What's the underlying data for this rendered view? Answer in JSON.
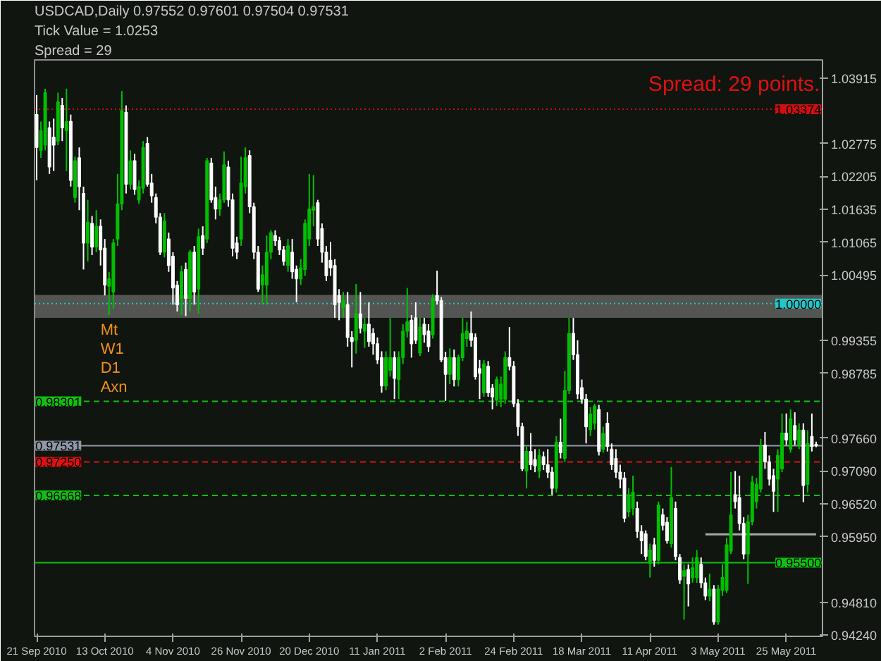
{
  "chart_data": {
    "type": "candlestick",
    "title": "USDCAD,Daily  0.97552 0.97601 0.97504 0.97531",
    "annotations": [
      "Tick Value = 1.0253",
      "Spread = 29",
      "Spread: 29 points.",
      "Mt",
      "W1",
      "D1",
      "Axn"
    ],
    "categories": [
      "21 Sep 2010",
      null,
      null,
      null,
      null,
      null,
      null,
      null,
      null,
      null,
      null,
      null,
      null,
      null,
      null,
      null,
      "13 Oct 2010",
      null,
      null,
      null,
      null,
      null,
      null,
      null,
      null,
      null,
      null,
      null,
      null,
      null,
      null,
      null,
      "4 Nov 2010",
      null,
      null,
      null,
      null,
      null,
      null,
      null,
      null,
      null,
      null,
      null,
      null,
      null,
      null,
      null,
      "26 Nov 2010",
      null,
      null,
      null,
      null,
      null,
      null,
      null,
      null,
      null,
      null,
      null,
      null,
      null,
      null,
      null,
      "20 Dec 2010",
      null,
      null,
      null,
      null,
      null,
      null,
      null,
      null,
      null,
      null,
      null,
      null,
      null,
      null,
      null,
      "11 Jan 2011",
      null,
      null,
      null,
      null,
      null,
      null,
      null,
      null,
      null,
      null,
      null,
      null,
      null,
      null,
      null,
      "2 Feb 2011",
      null,
      null,
      null,
      null,
      null,
      null,
      null,
      null,
      null,
      null,
      null,
      null,
      null,
      null,
      null,
      "24 Feb 2011",
      null,
      null,
      null,
      null,
      null,
      null,
      null,
      null,
      null,
      null,
      null,
      null,
      null,
      null,
      null,
      "18 Mar 2011",
      null,
      null,
      null,
      null,
      null,
      null,
      null,
      null,
      null,
      null,
      null,
      null,
      null,
      null,
      null,
      "11 Apr 2011",
      null,
      null,
      null,
      null,
      null,
      null,
      null,
      null,
      null,
      null,
      null,
      null,
      null,
      null,
      null,
      "3 May 2011",
      null,
      null,
      null,
      null,
      null,
      null,
      null,
      null,
      null,
      null,
      null,
      null,
      null,
      null,
      null,
      "25 May 2011",
      null,
      null,
      null,
      null,
      null,
      null,
      null
    ],
    "ohlc": [
      [
        1.0328,
        1.0362,
        1.0214,
        1.0271
      ],
      [
        1.0266,
        1.0316,
        1.0253,
        1.03
      ],
      [
        1.0275,
        1.0373,
        1.0266,
        1.0366
      ],
      [
        1.0305,
        1.0316,
        1.0225,
        1.0237
      ],
      [
        1.0289,
        1.0321,
        1.023,
        1.0275
      ],
      [
        1.0282,
        1.0366,
        1.0275,
        1.035
      ],
      [
        1.0344,
        1.0357,
        1.0282,
        1.0305
      ],
      [
        1.03,
        1.0373,
        1.023,
        1.0316
      ],
      [
        1.0316,
        1.0328,
        1.0203,
        1.0214
      ],
      [
        1.0184,
        1.0255,
        1.0175,
        1.0248
      ],
      [
        1.0253,
        1.0271,
        1.0162,
        1.0203
      ],
      [
        1.0191,
        1.0203,
        1.0059,
        1.0105
      ],
      [
        1.0105,
        1.018,
        1.0073,
        1.0141
      ],
      [
        1.0139,
        1.0152,
        1.0084,
        1.0098
      ],
      [
        1.0098,
        1.0162,
        1.0089,
        1.0134
      ],
      [
        1.0134,
        1.0146,
        1.0066,
        1.0093
      ],
      [
        1.0096,
        1.0112,
        1.0014,
        1.0032
      ],
      [
        1.003,
        1.0055,
        0.998,
        1.0043
      ],
      [
        1.002,
        1.0112,
        0.9991,
        1.0105
      ],
      [
        1.0112,
        1.0225,
        1.01,
        1.0173
      ],
      [
        1.0173,
        1.0369,
        1.0162,
        1.0335
      ],
      [
        1.0332,
        1.0344,
        1.0191,
        1.0207
      ],
      [
        1.0207,
        1.0266,
        1.0198,
        1.0248
      ],
      [
        1.0248,
        1.026,
        1.0189,
        1.0198
      ],
      [
        1.018,
        1.0214,
        1.0173,
        1.0203
      ],
      [
        1.02,
        1.0282,
        1.0191,
        1.0271
      ],
      [
        1.0278,
        1.0289,
        1.0203,
        1.0207
      ],
      [
        1.0209,
        1.0225,
        1.0175,
        1.0187
      ],
      [
        1.0184,
        1.0191,
        1.0139,
        1.015
      ],
      [
        1.015,
        1.0157,
        1.0084,
        1.0089
      ],
      [
        1.0089,
        1.0157,
        1.008,
        1.0143
      ],
      [
        1.0112,
        1.0123,
        1.0055,
        1.0066
      ],
      [
        1.0082,
        1.0089,
        0.9998,
        1.0027
      ],
      [
        1.0032,
        1.0039,
        0.9986,
        0.9998
      ],
      [
        1.0009,
        1.0066,
        0.998,
        1.0055
      ],
      [
        1.0059,
        1.0071,
        0.9978,
        1.0009
      ],
      [
        1.0009,
        1.0093,
        0.9986,
        1.0089
      ],
      [
        1.0089,
        1.01,
        0.9998,
        1.002
      ],
      [
        1.0025,
        1.013,
        0.9982,
        1.0116
      ],
      [
        1.0118,
        1.0134,
        1.0084,
        1.0096
      ],
      [
        1.0112,
        1.0253,
        1.0105,
        1.0248
      ],
      [
        1.0244,
        1.0253,
        1.0175,
        1.018
      ],
      [
        1.0184,
        1.0203,
        1.0146,
        1.0164
      ],
      [
        1.0164,
        1.0191,
        1.0152,
        1.018
      ],
      [
        1.018,
        1.0264,
        1.0175,
        1.0241
      ],
      [
        1.0237,
        1.0248,
        1.0168,
        1.018
      ],
      [
        1.018,
        1.0191,
        1.0082,
        1.0096
      ],
      [
        1.0105,
        1.0116,
        1.0077,
        1.0089
      ],
      [
        1.0112,
        1.0255,
        1.01,
        1.0209
      ],
      [
        1.0203,
        1.0271,
        1.0191,
        1.0253
      ],
      [
        1.0257,
        1.0266,
        1.0157,
        1.0168
      ],
      [
        1.0168,
        1.0175,
        1.0077,
        1.0089
      ],
      [
        1.0089,
        1.01,
        1.002,
        1.0025
      ],
      [
        1.0032,
        1.0066,
        0.9998,
        1.005
      ],
      [
        1.0032,
        1.0118,
        0.9998,
        1.0089
      ],
      [
        1.0089,
        1.0127,
        1.0077,
        1.0123
      ],
      [
        1.0118,
        1.0127,
        1.01,
        1.0109
      ],
      [
        1.0109,
        1.0116,
        1.0084,
        1.0093
      ],
      [
        1.0093,
        1.01,
        1.0066,
        1.0073
      ],
      [
        1.0066,
        1.0112,
        1.0055,
        1.01
      ],
      [
        1.0089,
        1.0112,
        1.0043,
        1.0055
      ],
      [
        1.0059,
        1.0066,
        1.0002,
        1.0043
      ],
      [
        1.0043,
        1.0077,
        1.0032,
        1.0062
      ],
      [
        1.0059,
        1.0146,
        1.0048,
        1.0139
      ],
      [
        1.0112,
        1.0225,
        1.01,
        1.0164
      ],
      [
        1.0162,
        1.0223,
        1.0134,
        1.0168
      ],
      [
        1.0175,
        1.018,
        1.01,
        1.0112
      ],
      [
        1.013,
        1.0139,
        1.0071,
        1.0089
      ],
      [
        1.0089,
        1.01,
        1.0039,
        1.0048
      ],
      [
        1.0075,
        1.0107,
        1.0048,
        1.0062
      ],
      [
        1.0066,
        1.0077,
        0.9975,
        0.9998
      ],
      [
        1.0014,
        1.0025,
        0.9971,
        1.0002
      ],
      [
        0.9993,
        1.002,
        0.9975,
        1.0005
      ],
      [
        0.9998,
        1.002,
        0.9925,
        0.9941
      ],
      [
        0.9941,
        0.9952,
        0.9889,
        0.9934
      ],
      [
        0.9936,
        1.0034,
        0.9913,
        0.9982
      ],
      [
        0.9982,
        1.002,
        0.9948,
        0.9957
      ],
      [
        0.9952,
        0.9975,
        0.9923,
        0.9964
      ],
      [
        0.9964,
        1.0002,
        0.9925,
        0.9934
      ],
      [
        0.9948,
        0.9957,
        0.9911,
        0.993
      ],
      [
        0.993,
        0.9941,
        0.9895,
        0.9902
      ],
      [
        0.9906,
        0.9917,
        0.9845,
        0.9857
      ],
      [
        0.9857,
        0.9917,
        0.9849,
        0.9906
      ],
      [
        0.9884,
        0.9975,
        0.9873,
        0.9906
      ],
      [
        0.9906,
        0.9917,
        0.9834,
        0.987
      ],
      [
        0.9868,
        0.9917,
        0.9834,
        0.9906
      ],
      [
        0.9906,
        0.9964,
        0.9895,
        0.9952
      ],
      [
        0.9952,
        1.0027,
        0.9941,
        0.9968
      ],
      [
        0.9971,
        0.998,
        0.9906,
        0.993
      ],
      [
        0.9975,
        1.0002,
        0.993,
        0.9936
      ],
      [
        0.9914,
        0.9975,
        0.9909,
        0.9959
      ],
      [
        0.9964,
        0.9975,
        0.9932,
        0.9946
      ],
      [
        0.9952,
        0.9964,
        0.9916,
        0.9925
      ],
      [
        0.9946,
        1.0016,
        0.9939,
        1.0009
      ],
      [
        1.0014,
        1.0057,
        0.9998,
        1.0005
      ],
      [
        1.0005,
        1.0011,
        0.9898,
        0.9902
      ],
      [
        0.9906,
        0.9916,
        0.9831,
        0.9877
      ],
      [
        0.9877,
        0.9922,
        0.986,
        0.9906
      ],
      [
        0.9906,
        0.992,
        0.9856,
        0.9868
      ],
      [
        0.9868,
        0.9911,
        0.9856,
        0.9906
      ],
      [
        0.9906,
        0.9975,
        0.99,
        0.9948
      ],
      [
        0.9939,
        0.9968,
        0.9925,
        0.9952
      ],
      [
        0.9948,
        0.9986,
        0.9925,
        0.9936
      ],
      [
        0.9941,
        0.9948,
        0.9868,
        0.9873
      ],
      [
        0.9887,
        0.9902,
        0.9834,
        0.9879
      ],
      [
        0.9845,
        0.9902,
        0.9838,
        0.9895
      ],
      [
        0.9891,
        0.99,
        0.9838,
        0.9845
      ],
      [
        0.9853,
        0.986,
        0.9816,
        0.9838
      ],
      [
        0.9832,
        0.9873,
        0.9822,
        0.9868
      ],
      [
        0.9834,
        0.9873,
        0.982,
        0.986
      ],
      [
        0.9834,
        0.9917,
        0.9826,
        0.9906
      ],
      [
        0.9906,
        0.9959,
        0.9884,
        0.9891
      ],
      [
        0.9891,
        0.99,
        0.982,
        0.9826
      ],
      [
        0.9826,
        0.9834,
        0.977,
        0.9786
      ],
      [
        0.9786,
        0.9793,
        0.9709,
        0.9713
      ],
      [
        0.9709,
        0.9752,
        0.9679,
        0.9743
      ],
      [
        0.9743,
        0.9775,
        0.9711,
        0.972
      ],
      [
        0.9729,
        0.9747,
        0.9707,
        0.9718
      ],
      [
        0.9709,
        0.9747,
        0.9697,
        0.9736
      ],
      [
        0.9734,
        0.9743,
        0.9711,
        0.972
      ],
      [
        0.972,
        0.9747,
        0.9697,
        0.9707
      ],
      [
        0.9707,
        0.9716,
        0.9668,
        0.9679
      ],
      [
        0.9679,
        0.977,
        0.9672,
        0.9759
      ],
      [
        0.9759,
        0.98,
        0.9731,
        0.9741
      ],
      [
        0.9731,
        0.9883,
        0.9725,
        0.9849
      ],
      [
        0.9849,
        0.9975,
        0.9843,
        0.9948
      ],
      [
        0.9948,
        0.9975,
        0.9902,
        0.9911
      ],
      [
        0.9911,
        0.9936,
        0.9834,
        0.9843
      ],
      [
        0.9854,
        0.9868,
        0.9826,
        0.9834
      ],
      [
        0.9834,
        0.9843,
        0.9757,
        0.9786
      ],
      [
        0.9781,
        0.982,
        0.977,
        0.9808
      ],
      [
        0.9792,
        0.9826,
        0.9781,
        0.9822
      ],
      [
        0.9816,
        0.9824,
        0.9736,
        0.9743
      ],
      [
        0.9747,
        0.9786,
        0.9741,
        0.9774
      ],
      [
        0.9792,
        0.9811,
        0.9743,
        0.9752
      ],
      [
        0.9747,
        0.9757,
        0.9711,
        0.972
      ],
      [
        0.9731,
        0.9747,
        0.9697,
        0.9707
      ],
      [
        0.9707,
        0.972,
        0.9679,
        0.9695
      ],
      [
        0.9697,
        0.9707,
        0.962,
        0.9627
      ],
      [
        0.9638,
        0.9679,
        0.9629,
        0.9668
      ],
      [
        0.9644,
        0.9701,
        0.9632,
        0.9672
      ],
      [
        0.9644,
        0.9656,
        0.9593,
        0.9604
      ],
      [
        0.9604,
        0.9615,
        0.9565,
        0.9588
      ],
      [
        0.96,
        0.9606,
        0.9554,
        0.9561
      ],
      [
        0.9549,
        0.9583,
        0.9524,
        0.9572
      ],
      [
        0.9581,
        0.9593,
        0.9543,
        0.9554
      ],
      [
        0.9554,
        0.9656,
        0.9547,
        0.965
      ],
      [
        0.9633,
        0.9644,
        0.9606,
        0.9615
      ],
      [
        0.962,
        0.9629,
        0.9583,
        0.9588
      ],
      [
        0.9583,
        0.9716,
        0.9576,
        0.9663
      ],
      [
        0.9644,
        0.9656,
        0.9554,
        0.9561
      ],
      [
        0.9559,
        0.9565,
        0.9513,
        0.952
      ],
      [
        0.9526,
        0.9547,
        0.9451,
        0.9536
      ],
      [
        0.9538,
        0.9547,
        0.9474,
        0.9513
      ],
      [
        0.9524,
        0.9559,
        0.9515,
        0.9541
      ],
      [
        0.9524,
        0.9572,
        0.9515,
        0.9559
      ],
      [
        0.9547,
        0.9559,
        0.9506,
        0.9515
      ],
      [
        0.9515,
        0.9524,
        0.9485,
        0.9492
      ],
      [
        0.9492,
        0.9531,
        0.9483,
        0.9504
      ],
      [
        0.9504,
        0.9511,
        0.9442,
        0.9447
      ],
      [
        0.9447,
        0.9511,
        0.9442,
        0.9504
      ],
      [
        0.9502,
        0.9547,
        0.9492,
        0.9524
      ],
      [
        0.9502,
        0.9593,
        0.9497,
        0.9581
      ],
      [
        0.957,
        0.9707,
        0.9565,
        0.9633
      ],
      [
        0.9668,
        0.9709,
        0.9644,
        0.9656
      ],
      [
        0.9663,
        0.9701,
        0.9606,
        0.9618
      ],
      [
        0.9618,
        0.9629,
        0.9556,
        0.9565
      ],
      [
        0.9565,
        0.9633,
        0.9513,
        0.9621
      ],
      [
        0.9621,
        0.9701,
        0.9615,
        0.969
      ],
      [
        0.9656,
        0.9697,
        0.9644,
        0.9686
      ],
      [
        0.9678,
        0.9765,
        0.9672,
        0.9752
      ],
      [
        0.9754,
        0.9777,
        0.9713,
        0.9725
      ],
      [
        0.9725,
        0.9736,
        0.9684,
        0.9695
      ],
      [
        0.9701,
        0.9713,
        0.9638,
        0.9674
      ],
      [
        0.9695,
        0.9747,
        0.9638,
        0.9736
      ],
      [
        0.9713,
        0.9809,
        0.9707,
        0.9775
      ],
      [
        0.9775,
        0.9809,
        0.9754,
        0.9763
      ],
      [
        0.9747,
        0.9816,
        0.9741,
        0.98
      ],
      [
        0.9788,
        0.9811,
        0.9754,
        0.9763
      ],
      [
        0.9754,
        0.9792,
        0.9747,
        0.978
      ],
      [
        0.978,
        0.9792,
        0.9655,
        0.9684
      ],
      [
        0.9686,
        0.978,
        0.9672,
        0.9757
      ],
      [
        0.9769,
        0.9809,
        0.9743,
        0.9752
      ],
      [
        0.97552,
        0.97601,
        0.97504,
        0.97531
      ]
    ],
    "colors": [
      "#ffffff",
      "#00c000",
      "#00c000",
      "#ffffff",
      "#ffffff",
      "#00c000",
      "#ffffff",
      "#00c000",
      "#ffffff",
      "#00c000",
      "#ffffff",
      "#ffffff",
      "#00c000",
      "#ffffff",
      "#00c000",
      "#ffffff",
      "#ffffff",
      "#00c000",
      "#00c000",
      "#00c000",
      "#00c000",
      "#ffffff",
      "#00c000",
      "#ffffff",
      "#00c000",
      "#00c000",
      "#ffffff",
      "#ffffff",
      "#ffffff",
      "#ffffff",
      "#00c000",
      "#ffffff",
      "#ffffff",
      "#ffffff",
      "#00c000",
      "#ffffff",
      "#00c000",
      "#ffffff",
      "#00c000",
      "#ffffff",
      "#00c000",
      "#ffffff",
      "#ffffff",
      "#00c000",
      "#00c000",
      "#ffffff",
      "#ffffff",
      "#ffffff",
      "#00c000",
      "#00c000",
      "#ffffff",
      "#ffffff",
      "#ffffff",
      "#00c000",
      "#00c000",
      "#00c000",
      "#ffffff",
      "#ffffff",
      "#ffffff",
      "#00c000",
      "#ffffff",
      "#ffffff",
      "#00c000",
      "#00c000",
      "#00c000",
      "#00c000",
      "#ffffff",
      "#ffffff",
      "#ffffff",
      "#ffffff",
      "#ffffff",
      "#ffffff",
      "#00c000",
      "#ffffff",
      "#ffffff",
      "#00c000",
      "#ffffff",
      "#00c000",
      "#ffffff",
      "#ffffff",
      "#ffffff",
      "#ffffff",
      "#00c000",
      "#00c000",
      "#ffffff",
      "#00c000",
      "#00c000",
      "#00c000",
      "#ffffff",
      "#ffffff",
      "#00c000",
      "#ffffff",
      "#ffffff",
      "#00c000",
      "#ffffff",
      "#ffffff",
      "#ffffff",
      "#00c000",
      "#ffffff",
      "#00c000",
      "#00c000",
      "#00c000",
      "#ffffff",
      "#ffffff",
      "#ffffff",
      "#00c000",
      "#ffffff",
      "#ffffff",
      "#00c000",
      "#00c000",
      "#00c000",
      "#ffffff",
      "#ffffff",
      "#ffffff",
      "#ffffff",
      "#00c000",
      "#ffffff",
      "#ffffff",
      "#00c000",
      "#ffffff",
      "#ffffff",
      "#ffffff",
      "#00c000",
      "#ffffff",
      "#00c000",
      "#00c000",
      "#ffffff",
      "#ffffff",
      "#ffffff",
      "#ffffff",
      "#00c000",
      "#00c000",
      "#ffffff",
      "#00c000",
      "#ffffff",
      "#ffffff",
      "#ffffff",
      "#ffffff",
      "#ffffff",
      "#00c000",
      "#00c000",
      "#ffffff",
      "#ffffff",
      "#ffffff",
      "#00c000",
      "#ffffff",
      "#00c000",
      "#ffffff",
      "#ffffff",
      "#00c000",
      "#ffffff",
      "#ffffff",
      "#00c000",
      "#ffffff",
      "#00c000",
      "#00c000",
      "#ffffff",
      "#ffffff",
      "#00c000",
      "#ffffff",
      "#00c000",
      "#00c000",
      "#00c000",
      "#00c000",
      "#ffffff",
      "#ffffff",
      "#ffffff",
      "#00c000",
      "#00c000",
      "#00c000",
      "#00c000",
      "#ffffff",
      "#ffffff",
      "#ffffff",
      "#00c000",
      "#00c000",
      "#ffffff",
      "#00c000",
      "#ffffff",
      "#00c000",
      "#ffffff",
      "#00c000",
      "#ffffff",
      "#ffffff"
    ],
    "series": [
      {
        "type": "line",
        "color": "#a8a8a8",
        "values": [
          null,
          null,
          null,
          null,
          null,
          null,
          null,
          null,
          null,
          null,
          null,
          null,
          null,
          null,
          null,
          null,
          null,
          null,
          null,
          null,
          null,
          null,
          null,
          null,
          null,
          null,
          null,
          null,
          null,
          null,
          null,
          null,
          null,
          null,
          null,
          null,
          null,
          null,
          null,
          null,
          null,
          null,
          null,
          null,
          null,
          null,
          null,
          null,
          null,
          null,
          null,
          null,
          null,
          null,
          null,
          null,
          null,
          null,
          null,
          null,
          null,
          null,
          null,
          null,
          null,
          null,
          null,
          null,
          null,
          null,
          null,
          null,
          null,
          null,
          null,
          null,
          null,
          null,
          null,
          null,
          null,
          null,
          null,
          null,
          null,
          null,
          null,
          null,
          null,
          null,
          null,
          null,
          null,
          null,
          null,
          null,
          null,
          null,
          null,
          null,
          null,
          null,
          null,
          null,
          null,
          null,
          null,
          null,
          null,
          null,
          null,
          null,
          null,
          null,
          null,
          null,
          null,
          null,
          null,
          null,
          null,
          null,
          null,
          null,
          null,
          null,
          null,
          null,
          null,
          null,
          null,
          null,
          null,
          null,
          null,
          null,
          null,
          null,
          null,
          null,
          null,
          null,
          null,
          null,
          null,
          null,
          null,
          null,
          null,
          null,
          null,
          null,
          null,
          null,
          null,
          null,
          null,
          0.9599,
          0.9599,
          0.9599,
          0.9599,
          0.9599,
          0.9599,
          0.9599,
          0.9599,
          0.9599,
          0.9599,
          0.9599,
          0.9599,
          0.9599,
          0.9599,
          0.9599,
          0.9599,
          0.9599,
          0.9599,
          0.9599,
          0.9599,
          0.9599,
          0.9599,
          0.9599,
          0.9599,
          0.9599,
          0.9599,
          0.9599
        ]
      }
    ],
    "ylim": [
      0.9422,
      1.0423
    ],
    "yticks": [
      {
        "value": 1.03915,
        "label": "1.03915"
      },
      {
        "value": 1.02775,
        "label": "1.02775"
      },
      {
        "value": 1.02205,
        "label": "1.02205"
      },
      {
        "value": 1.01635,
        "label": "1.01635"
      },
      {
        "value": 1.01065,
        "label": "1.01065"
      },
      {
        "value": 1.00495,
        "label": "1.00495"
      },
      {
        "value": 0.99355,
        "label": "0.99355"
      },
      {
        "value": 0.98785,
        "label": "0.98785"
      },
      {
        "value": 0.9766,
        "label": "0.97660"
      },
      {
        "value": 0.9709,
        "label": "0.97090"
      },
      {
        "value": 0.9652,
        "label": "0.96520"
      },
      {
        "value": 0.9595,
        "label": "0.95950"
      },
      {
        "value": 0.9481,
        "label": "0.94810"
      },
      {
        "value": 0.9424,
        "label": "0.94240"
      }
    ],
    "ref_lines": [
      {
        "axis": "y",
        "value": 1.03374,
        "label": "1.03374",
        "color": "#d01010",
        "line_style": "dotted"
      },
      {
        "axis": "y",
        "value": 1.0,
        "label": "1.00000",
        "color": "#20c8c8",
        "line_style": "dotted"
      },
      {
        "axis": "y",
        "value": 0.98301,
        "label": "0.98301",
        "color": "#10c010",
        "line_style": "dashed"
      },
      {
        "axis": "y",
        "value": 0.97531,
        "label": "0.97531",
        "color": "#9098a8",
        "line_style": "solid"
      },
      {
        "axis": "y",
        "value": 0.9725,
        "label": "0.97250",
        "color": "#e01010",
        "line_style": "dashed"
      },
      {
        "axis": "y",
        "value": 0.96668,
        "label": "0.96668",
        "color": "#10c010",
        "line_style": "dashed"
      },
      {
        "axis": "y",
        "value": 0.955,
        "label": "0.95500",
        "color": "#10c010",
        "line_style": "solid"
      }
    ],
    "bands": [
      {
        "axis": "y",
        "from": 0.9975,
        "to": 1.0015,
        "color": "#8a8a8a"
      }
    ]
  }
}
